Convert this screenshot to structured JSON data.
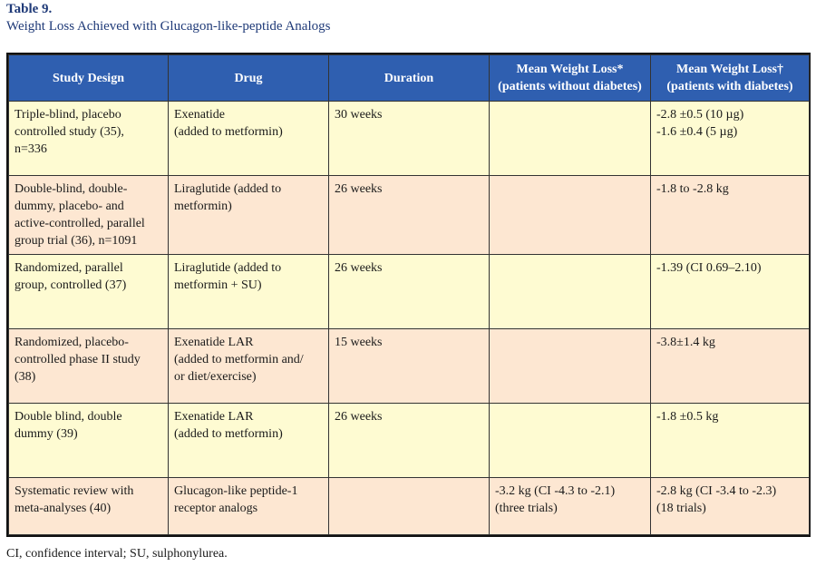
{
  "table": {
    "label": "Table 9.",
    "title": "Weight Loss Achieved with Glucagon-like-peptide Analogs",
    "headers": [
      "Study Design",
      "Drug",
      "Duration",
      "Mean Weight Loss* (patients without diabetes)",
      "Mean Weight Loss† (patients with diabetes)"
    ],
    "rows": [
      {
        "design": [
          "Triple-blind, placebo",
          "controlled study (35),",
          "n=336"
        ],
        "drug": [
          "Exenatide",
          "(added to metformin)"
        ],
        "duration": "30 weeks",
        "without": [],
        "with": [
          "-2.8 ±0.5 (10 µg)",
          "-1.6 ±0.4 (5 µg)"
        ]
      },
      {
        "design": [
          "Double-blind, double-",
          "dummy, placebo- and",
          "active-controlled, parallel",
          "group trial (36), n=1091"
        ],
        "drug": [
          "Liraglutide (added to",
          "metformin)"
        ],
        "duration": "26 weeks",
        "without": [],
        "with": [
          "-1.8 to -2.8 kg"
        ]
      },
      {
        "design": [
          "Randomized, parallel",
          "group, controlled (37)"
        ],
        "drug": [
          "Liraglutide (added to",
          "metformin + SU)"
        ],
        "duration": "26 weeks",
        "without": [],
        "with": [
          "-1.39 (CI 0.69–2.10)"
        ]
      },
      {
        "design": [
          "Randomized, placebo-",
          "controlled phase II study",
          "(38)"
        ],
        "drug": [
          "Exenatide LAR",
          "(added to metformin and/",
          "or diet/exercise)"
        ],
        "duration": "15 weeks",
        "without": [],
        "with": [
          "-3.8±1.4 kg"
        ]
      },
      {
        "design": [
          "Double blind, double",
          "dummy (39)"
        ],
        "drug": [
          "Exenatide LAR",
          "(added to metformin)"
        ],
        "duration": "26 weeks",
        "without": [],
        "with": [
          "-1.8 ±0.5 kg"
        ]
      },
      {
        "design": [
          "Systematic review with",
          "meta-analyses (40)"
        ],
        "drug": [
          "Glucagon-like peptide-1",
          "receptor analogs"
        ],
        "duration": "",
        "without": [
          "-3.2 kg (CI -4.3 to -2.1)",
          "(three trials)"
        ],
        "with": [
          "-2.8 kg (CI -3.4 to -2.3)",
          "(18 trials)"
        ]
      }
    ],
    "footnote": "CI, confidence interval; SU, sulphonylurea."
  },
  "colors": {
    "header_bg": "#2f5fb0",
    "title_text": "#1f3a78",
    "row_yellow": "#fefbd2",
    "row_peach": "#fde7d2"
  }
}
